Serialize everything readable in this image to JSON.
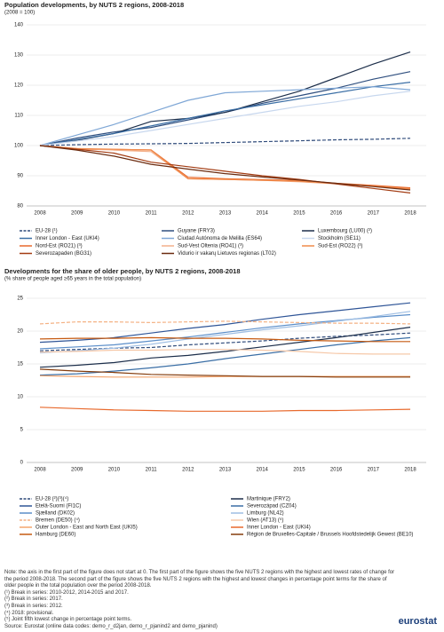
{
  "chart_data": [
    {
      "type": "line",
      "title": "Population developments, by NUTS 2 regions, 2008-2018",
      "subtitle": "(2008 = 100)",
      "categories": [
        "2008",
        "2009",
        "2010",
        "2011",
        "2012",
        "2013",
        "2014",
        "2015",
        "2016",
        "2017",
        "2018"
      ],
      "ylim": [
        80,
        140
      ],
      "yticks": [
        80,
        90,
        100,
        110,
        120,
        130,
        140
      ],
      "grid": true,
      "legend_columns": 3,
      "series": [
        {
          "name": "EU-28 (¹)",
          "color": "#2e4a7a",
          "dashed": true,
          "values": [
            100,
            100.3,
            100.5,
            100.6,
            100.7,
            101.0,
            101.3,
            101.6,
            101.9,
            102.1,
            102.4
          ]
        },
        {
          "name": "Guyane (FRY3)",
          "color": "#2f4f7f",
          "values": [
            100,
            102.5,
            104.5,
            106,
            108.5,
            111,
            114,
            116.5,
            119,
            122,
            124.5
          ]
        },
        {
          "name": "Luxembourg (LU00) (²)",
          "color": "#1c2e4a",
          "values": [
            100,
            101.8,
            104,
            108,
            109,
            111,
            114.5,
            118,
            122.5,
            127,
            131
          ]
        },
        {
          "name": "Inner London - East (UKI4)",
          "color": "#3a6ea5",
          "values": [
            100,
            102,
            104,
            106.5,
            109,
            111.5,
            113.5,
            115.5,
            117.5,
            119.5,
            121
          ]
        },
        {
          "name": "Ciudad Autónoma de Melilla (ES64)",
          "color": "#7fa7d6",
          "values": [
            100,
            103.5,
            107,
            111,
            115,
            117.5,
            118,
            118.5,
            119,
            119.5,
            118.5
          ]
        },
        {
          "name": "Stockholm (SE11)",
          "color": "#c7d7ee",
          "values": [
            100,
            101.5,
            103,
            105,
            107,
            109,
            111,
            113,
            114.5,
            116.5,
            118
          ]
        },
        {
          "name": "Nord-Est (RO21) (³)",
          "color": "#e8692c",
          "values": [
            100,
            98.8,
            98.7,
            98.6,
            89.5,
            89,
            88.7,
            88.4,
            87.5,
            86.8,
            86
          ]
        },
        {
          "name": "Sud-Vest Oltenia (RO41) (³)",
          "color": "#f3b08a",
          "values": [
            100,
            99,
            98.5,
            98,
            89,
            88.8,
            88.5,
            88,
            87.3,
            86.5,
            85.5
          ]
        },
        {
          "name": "Sud-Est (RO22) (³)",
          "color": "#f08a4b",
          "values": [
            100,
            99,
            98.8,
            98.5,
            89,
            88.8,
            88.5,
            88.2,
            87.4,
            86.5,
            85.7
          ]
        },
        {
          "name": "Severozapaden (BG31)",
          "color": "#a33c13",
          "values": [
            100,
            98.8,
            97.5,
            94.5,
            93,
            91.5,
            90,
            88.8,
            87.3,
            85.8,
            84.3
          ]
        },
        {
          "name": "Vidurio ir vakarų Lietuvos regionas (LT02)",
          "color": "#6b2b0f",
          "values": [
            100,
            98.5,
            96.5,
            93.8,
            92.2,
            90.7,
            89.6,
            88.6,
            87.5,
            86.4,
            85.3
          ]
        }
      ]
    },
    {
      "type": "line",
      "title": "Developments for the share of older people, by NUTS 2 regions, 2008-2018",
      "subtitle": "(% share of people aged ≥65 years in the total population)",
      "categories": [
        "2008",
        "2009",
        "2010",
        "2011",
        "2012",
        "2013",
        "2014",
        "2015",
        "2016",
        "2017",
        "2018"
      ],
      "ylim": [
        0,
        25
      ],
      "yticks": [
        0,
        5,
        10,
        15,
        20,
        25
      ],
      "grid": true,
      "legend_columns": 2,
      "series": [
        {
          "name": "EU-28 (²)(³)(⁴)",
          "color": "#2e4a7a",
          "dashed": true,
          "values": [
            17.0,
            17.2,
            17.4,
            17.5,
            17.9,
            18.2,
            18.5,
            18.9,
            19.2,
            19.4,
            19.7
          ]
        },
        {
          "name": "Martinique (FRY2)",
          "color": "#1c2e4a",
          "values": [
            14.5,
            14.8,
            15.2,
            15.9,
            16.3,
            16.9,
            17.6,
            18.3,
            19.0,
            19.8,
            20.6
          ]
        },
        {
          "name": "Etelä-Suomi (FI1C)",
          "color": "#2f5597",
          "values": [
            18.3,
            18.6,
            19.0,
            19.7,
            20.4,
            21.0,
            21.8,
            22.5,
            23.1,
            23.7,
            24.3
          ]
        },
        {
          "name": "Severozápad (CZ04)",
          "color": "#3a6ea5",
          "values": [
            13.3,
            13.5,
            13.9,
            14.4,
            15.0,
            15.8,
            16.5,
            17.2,
            17.9,
            18.5,
            19.0
          ]
        },
        {
          "name": "Sjælland (DK02)",
          "color": "#5b8ec9",
          "values": [
            17.3,
            17.6,
            17.9,
            18.5,
            19.1,
            19.8,
            20.5,
            21.1,
            21.6,
            22.1,
            22.5
          ]
        },
        {
          "name": "Limburg (NL42)",
          "color": "#9dbde3",
          "values": [
            16.7,
            17.0,
            17.4,
            18.0,
            18.8,
            19.5,
            20.2,
            20.8,
            21.5,
            22.2,
            23.0
          ]
        },
        {
          "name": "Bremen (DE50) (⁴)",
          "color": "#f4b183",
          "dashed": true,
          "values": [
            21.1,
            21.4,
            21.4,
            21.3,
            21.4,
            21.5,
            21.4,
            21.3,
            21.2,
            21.2,
            21.1
          ]
        },
        {
          "name": "Wien (AT13) (⁵)",
          "color": "#f6c8a8",
          "values": [
            16.8,
            16.9,
            17.1,
            17.1,
            17.2,
            17.2,
            17.1,
            16.9,
            16.6,
            16.5,
            16.5
          ]
        },
        {
          "name": "Outer London - East and North East (UKI5)",
          "color": "#f4a56e",
          "values": [
            13.2,
            13.1,
            13.0,
            13.0,
            13.0,
            13.1,
            13.1,
            13.1,
            13.1,
            13.1,
            13.1
          ]
        },
        {
          "name": "Inner London - East (UKI4)",
          "color": "#e8692c",
          "values": [
            8.4,
            8.2,
            8.0,
            7.9,
            7.8,
            7.8,
            7.8,
            7.9,
            7.9,
            8.0,
            8.1
          ]
        },
        {
          "name": "Hamburg (DE60)",
          "color": "#c55a11",
          "values": [
            18.8,
            18.9,
            18.9,
            19.0,
            18.9,
            18.9,
            18.8,
            18.6,
            18.5,
            18.4,
            18.4
          ]
        },
        {
          "name": "Région de Bruxelles-Capitale / Brussels Hoofdstedelijk Gewest (BE10)",
          "color": "#843c0c",
          "values": [
            14.2,
            13.9,
            13.7,
            13.4,
            13.3,
            13.2,
            13.1,
            13.1,
            13.0,
            13.0,
            13.0
          ]
        }
      ]
    }
  ],
  "notes": [
    "Note: the axis in the first part of the figure does not start at 0. The first part of the figure shows the five NUTS 2 regions with the highest and lowest rates of change for the period 2008-2018. The second part of the figure shows the five NUTS 2 regions with the highest and lowest changes in percentage point terms for the share of older people in the total population over the period 2008-2018.",
    "(¹) Break in series: 2010-2012, 2014-2015 and 2017.",
    "(²) Break in series: 2017.",
    "(³) Break in series: 2012.",
    "(⁴) 2018: provisional.",
    "(⁵) Joint fifth lowest change in percentage point terms.",
    "Source: Eurostat (online data codes: demo_r_d2jan, demo_r_pjanind2 and demo_pjanind)"
  ],
  "logo": "eurostat"
}
